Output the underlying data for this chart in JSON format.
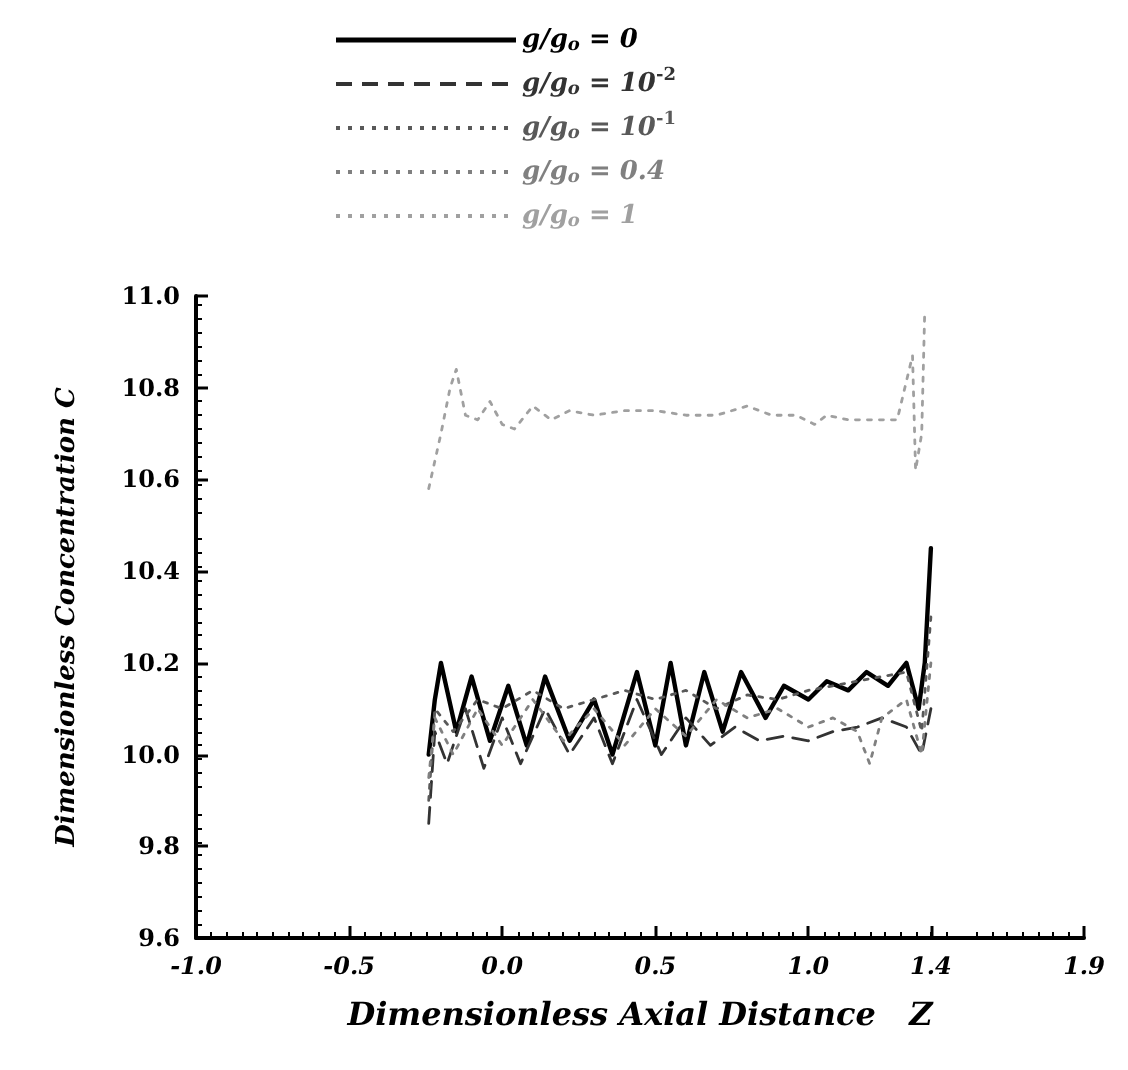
{
  "chart_data": {
    "type": "line",
    "xlabel": "Dimensionless Axial Distance   Z",
    "ylabel": "Dimensionless Concentration C",
    "xlim": [
      -1.0,
      1.9
    ],
    "xticks": [
      {
        "value": -1.0,
        "label": "-1.0"
      },
      {
        "value": -0.5,
        "label": "-0.5"
      },
      {
        "value": 0.0,
        "label": "0.0"
      },
      0.5,
      {
        "value": 1.0,
        "label": "1.0"
      },
      1.4,
      1.9
    ],
    "ylim": [
      9.6,
      11.0
    ],
    "yticks": [
      9.6,
      9.8,
      {
        "value": 10.0,
        "label": "10.0"
      },
      10.2,
      10.4,
      10.6,
      10.8,
      {
        "value": 11.0,
        "label": "11.0"
      }
    ],
    "grid": false,
    "legend": "top",
    "marker": "none",
    "series": [
      {
        "name": "g/g$_{o}$ = 0",
        "color": "#000000",
        "line_style": "solid",
        "x": [
          -0.24,
          -0.22,
          -0.2,
          -0.15,
          -0.1,
          -0.04,
          0.02,
          0.08,
          0.14,
          0.22,
          0.3,
          0.36,
          0.44,
          0.5,
          0.55,
          0.6,
          0.66,
          0.72,
          0.78,
          0.86,
          0.92,
          1.0,
          1.06,
          1.13,
          1.19,
          1.26,
          1.32,
          1.36,
          1.38,
          1.4
        ],
        "values": [
          10.0,
          10.12,
          10.2,
          10.05,
          10.17,
          10.03,
          10.15,
          10.02,
          10.17,
          10.03,
          10.12,
          10.0,
          10.18,
          10.02,
          10.2,
          10.02,
          10.18,
          10.05,
          10.18,
          10.08,
          10.15,
          10.12,
          10.16,
          10.14,
          10.18,
          10.15,
          10.2,
          10.1,
          10.2,
          10.45
        ]
      },
      {
        "name": "g/g$_{o}$ = 10$^{-2}$",
        "color": "#333333",
        "line_style": "dashed",
        "x": [
          -0.24,
          -0.22,
          -0.18,
          -0.12,
          -0.06,
          0.0,
          0.06,
          0.14,
          0.22,
          0.3,
          0.36,
          0.44,
          0.52,
          0.6,
          0.68,
          0.76,
          0.84,
          0.92,
          1.0,
          1.08,
          1.16,
          1.24,
          1.32,
          1.37,
          1.4
        ],
        "values": [
          9.85,
          10.05,
          9.98,
          10.1,
          9.97,
          10.08,
          9.98,
          10.1,
          10.0,
          10.08,
          9.98,
          10.12,
          10.0,
          10.08,
          10.02,
          10.06,
          10.03,
          10.04,
          10.03,
          10.05,
          10.06,
          10.08,
          10.06,
          10.0,
          10.1
        ]
      },
      {
        "name": "g/g$_{o}$ = 10$^{-1}$",
        "color": "#595959",
        "line_style": "dotted",
        "x": [
          -0.24,
          -0.22,
          -0.16,
          -0.08,
          0.0,
          0.1,
          0.2,
          0.3,
          0.4,
          0.5,
          0.6,
          0.7,
          0.8,
          0.9,
          1.0,
          1.08,
          1.16,
          1.24,
          1.32,
          1.37,
          1.4
        ],
        "values": [
          9.9,
          10.1,
          10.05,
          10.12,
          10.1,
          10.14,
          10.1,
          10.12,
          10.14,
          10.12,
          10.14,
          10.1,
          10.13,
          10.12,
          10.14,
          10.15,
          10.16,
          10.17,
          10.18,
          10.05,
          10.3
        ]
      },
      {
        "name": "g/g$_{o}$ = 0.4",
        "color": "#808080",
        "line_style": "dotted",
        "x": [
          -0.24,
          -0.22,
          -0.16,
          -0.08,
          0.0,
          0.1,
          0.2,
          0.3,
          0.4,
          0.5,
          0.6,
          0.7,
          0.8,
          0.9,
          1.0,
          1.08,
          1.16,
          1.2,
          1.24,
          1.32,
          1.37,
          1.4
        ],
        "values": [
          9.95,
          10.08,
          10.0,
          10.1,
          10.02,
          10.12,
          10.03,
          10.1,
          10.02,
          10.1,
          10.04,
          10.12,
          10.08,
          10.1,
          10.06,
          10.08,
          10.05,
          9.98,
          10.08,
          10.12,
          10.0,
          10.2
        ]
      },
      {
        "name": "g/g$_{o}$ = 1",
        "color": "#a0a0a0",
        "line_style": "dotted",
        "x": [
          -0.24,
          -0.2,
          -0.17,
          -0.15,
          -0.12,
          -0.08,
          -0.04,
          0.0,
          0.04,
          0.1,
          0.16,
          0.22,
          0.3,
          0.4,
          0.5,
          0.6,
          0.7,
          0.8,
          0.88,
          0.96,
          1.02,
          1.06,
          1.13,
          1.19,
          1.24,
          1.29,
          1.34,
          1.35,
          1.37,
          1.38
        ],
        "values": [
          10.58,
          10.7,
          10.8,
          10.84,
          10.74,
          10.73,
          10.77,
          10.72,
          10.71,
          10.76,
          10.73,
          10.75,
          10.74,
          10.75,
          10.75,
          10.74,
          10.74,
          10.76,
          10.74,
          10.74,
          10.72,
          10.74,
          10.73,
          10.73,
          10.73,
          10.73,
          10.87,
          10.62,
          10.7,
          10.97
        ]
      }
    ]
  }
}
